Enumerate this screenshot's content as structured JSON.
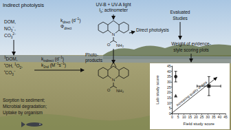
{
  "diagram": {
    "texts": {
      "indirect": [
        [
          {
            "t": "Indirect photolysis"
          }
        ]
      ],
      "light": [
        [
          {
            "t": "UV-B + UV-A light"
          }
        ],
        [
          {
            "t": "I"
          },
          {
            "sub": "λ"
          },
          {
            "t": "; actinometer"
          }
        ]
      ],
      "kdirect": [
        [
          {
            "t": "k"
          },
          {
            "sub": "direct"
          },
          {
            "t": " (d"
          },
          {
            "sup": "−1"
          },
          {
            "t": ")"
          }
        ],
        [
          {
            "t": "Φ"
          },
          {
            "sub": "direct"
          }
        ]
      ],
      "direct": [
        [
          {
            "t": "Direct photolysis"
          }
        ]
      ],
      "sensitizers": [
        [
          {
            "t": "DOM,"
          }
        ],
        [
          {
            "t": "NO"
          },
          {
            "sub": "3"
          },
          {
            "sup": "−"
          },
          {
            "t": ","
          }
        ],
        [
          {
            "t": "CO"
          },
          {
            "sub": "3"
          },
          {
            "sup": "2−"
          }
        ]
      ],
      "kindirect": [
        [
          {
            "t": "k"
          },
          {
            "sub": "indirect"
          },
          {
            "t": " (d"
          },
          {
            "sup": "−1"
          },
          {
            "t": ")"
          }
        ],
        [
          {
            "t": "k"
          },
          {
            "sub": "2nd"
          },
          {
            "t": " (M"
          },
          {
            "sup": "−1"
          },
          {
            "t": "s"
          },
          {
            "sup": "−1"
          },
          {
            "t": ")"
          }
        ]
      ],
      "species": [
        [
          {
            "sup": "3"
          },
          {
            "t": "DOM,"
          }
        ],
        [
          {
            "sup": "•"
          },
          {
            "t": "OH, "
          },
          {
            "sup": "1"
          },
          {
            "t": "O"
          },
          {
            "sub": "2"
          },
          {
            "t": ","
          }
        ],
        [
          {
            "sup": "•"
          },
          {
            "t": "CO"
          },
          {
            "sub": "3"
          },
          {
            "sup": "−"
          }
        ]
      ],
      "products": [
        [
          {
            "t": "Photo-"
          }
        ],
        [
          {
            "t": "products"
          }
        ]
      ],
      "fate": [
        [
          {
            "t": "Sorption to sediment;"
          }
        ],
        [
          {
            "t": "Microbial degradation;"
          }
        ],
        [
          {
            "t": "Uptake by organism"
          }
        ]
      ],
      "evaluated": [
        [
          {
            "t": "Evaluated"
          }
        ],
        [
          {
            "t": "Studies"
          }
        ]
      ],
      "scoring": [
        [
          {
            "t": "Weight of evidence-"
          }
        ],
        [
          {
            "t": "style scoring plots"
          }
        ]
      ]
    },
    "molecule": {
      "atoms": [
        "N",
        "O",
        "NH₂"
      ]
    },
    "product_molecule": {
      "atoms": [
        "N",
        "O",
        "NH₂"
      ]
    }
  },
  "chart_data": {
    "type": "scatter",
    "xlabel": "Field study score",
    "ylabel": "Lab study score",
    "annotation": "Increasing quality of data",
    "xlim": [
      0,
      45
    ],
    "ylim": [
      0,
      45
    ],
    "xticks": [
      0,
      5,
      10,
      15,
      20,
      25,
      30,
      35,
      40,
      45
    ],
    "yticks": [
      0,
      5,
      10,
      15,
      20,
      25,
      30,
      35,
      40,
      45
    ],
    "grid": false,
    "series": [
      {
        "x": [
          3
        ],
        "values": [
          35
        ],
        "y_err": [
          5
        ],
        "marker": "circle",
        "color": "#000000"
      },
      {
        "x": [
          3
        ],
        "values": [
          17
        ],
        "marker": "triangle",
        "color": "#000000"
      },
      {
        "x": [
          31
        ],
        "values": [
          26
        ],
        "x_err": [
          10
        ],
        "y_err": [
          9
        ],
        "marker": "square",
        "color": "#000000"
      }
    ]
  }
}
